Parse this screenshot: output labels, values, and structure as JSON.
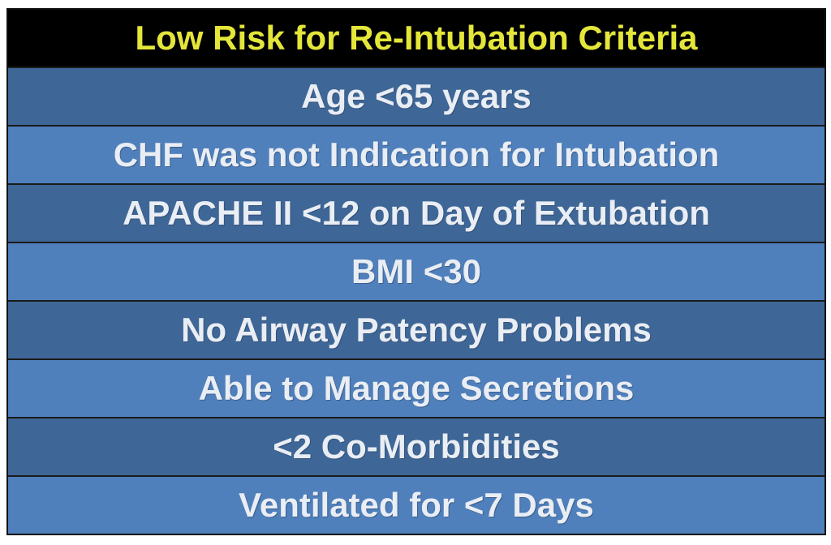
{
  "header": {
    "title": "Low Risk for Re-Intubation Criteria"
  },
  "table": {
    "rows": [
      "Age <65 years",
      "CHF was not Indication for Intubation",
      "APACHE II <12 on Day of Extubation",
      "BMI <30",
      "No Airway Patency Problems",
      "Able to Manage Secretions",
      "<2 Co-Morbidities",
      "Ventilated for <7 Days"
    ]
  }
}
